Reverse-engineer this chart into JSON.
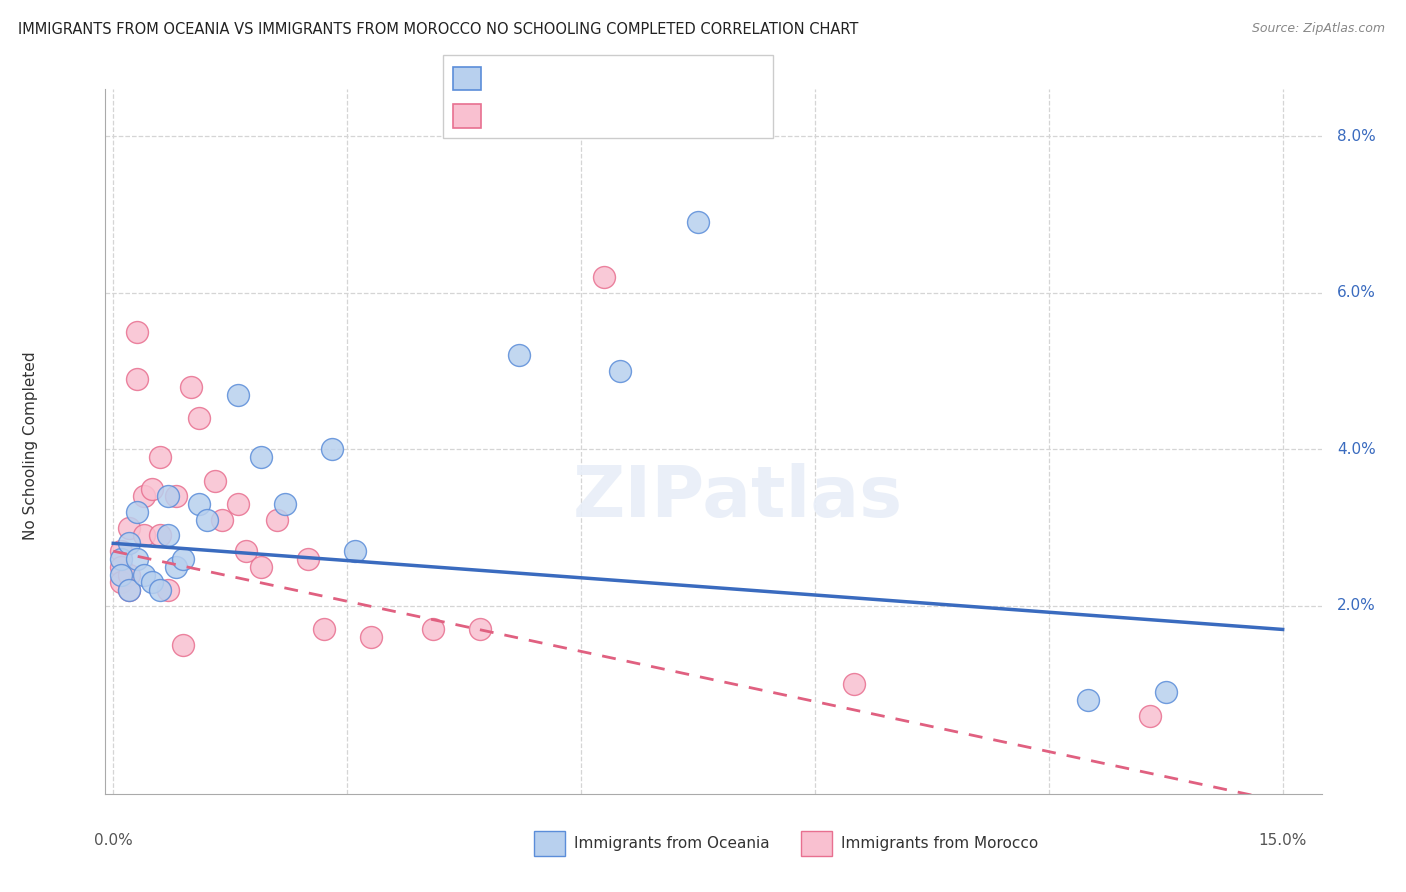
{
  "title": "IMMIGRANTS FROM OCEANIA VS IMMIGRANTS FROM MOROCCO NO SCHOOLING COMPLETED CORRELATION CHART",
  "source": "Source: ZipAtlas.com",
  "ylabel": "No Schooling Completed",
  "ylim": [
    -0.004,
    0.086
  ],
  "xlim": [
    -0.001,
    0.155
  ],
  "ytick_vals": [
    0.02,
    0.04,
    0.06,
    0.08
  ],
  "ytick_labels": [
    "2.0%",
    "4.0%",
    "6.0%",
    "8.0%"
  ],
  "xtick_vals": [
    0.0,
    0.03,
    0.06,
    0.09,
    0.12,
    0.15
  ],
  "xtick_labels": [
    "0.0%",
    "",
    "",
    "",
    "",
    "15.0%"
  ],
  "color_oceania_fill": "#b8d0ee",
  "color_oceania_edge": "#5b8dd9",
  "color_morocco_fill": "#f9c0d0",
  "color_morocco_edge": "#e87090",
  "color_line_oceania": "#3a6bbf",
  "color_line_morocco": "#e06080",
  "grid_color": "#d5d5d5",
  "background": "#ffffff",
  "scatter_oceania_x": [
    0.001,
    0.001,
    0.002,
    0.002,
    0.003,
    0.003,
    0.004,
    0.005,
    0.006,
    0.007,
    0.007,
    0.008,
    0.009,
    0.011,
    0.012,
    0.016,
    0.019,
    0.022,
    0.028,
    0.031,
    0.052,
    0.065,
    0.075,
    0.125,
    0.135
  ],
  "scatter_oceania_y": [
    0.026,
    0.024,
    0.028,
    0.022,
    0.032,
    0.026,
    0.024,
    0.023,
    0.022,
    0.029,
    0.034,
    0.025,
    0.026,
    0.033,
    0.031,
    0.047,
    0.039,
    0.033,
    0.04,
    0.027,
    0.052,
    0.05,
    0.069,
    0.008,
    0.009
  ],
  "scatter_morocco_x": [
    0.001,
    0.001,
    0.001,
    0.002,
    0.002,
    0.002,
    0.003,
    0.003,
    0.004,
    0.004,
    0.005,
    0.006,
    0.006,
    0.007,
    0.008,
    0.009,
    0.01,
    0.011,
    0.013,
    0.014,
    0.016,
    0.017,
    0.019,
    0.021,
    0.025,
    0.027,
    0.033,
    0.041,
    0.047,
    0.063,
    0.095,
    0.133
  ],
  "scatter_morocco_y": [
    0.027,
    0.025,
    0.023,
    0.03,
    0.024,
    0.022,
    0.055,
    0.049,
    0.034,
    0.029,
    0.035,
    0.039,
    0.029,
    0.022,
    0.034,
    0.015,
    0.048,
    0.044,
    0.036,
    0.031,
    0.033,
    0.027,
    0.025,
    0.031,
    0.026,
    0.017,
    0.016,
    0.017,
    0.017,
    0.062,
    0.01,
    0.006
  ],
  "line_oceania_x0": 0.0,
  "line_oceania_y0": 0.028,
  "line_oceania_x1": 0.15,
  "line_oceania_y1": 0.017,
  "line_morocco_x0": 0.0,
  "line_morocco_y0": 0.027,
  "line_morocco_x1": 0.15,
  "line_morocco_y1": -0.005
}
